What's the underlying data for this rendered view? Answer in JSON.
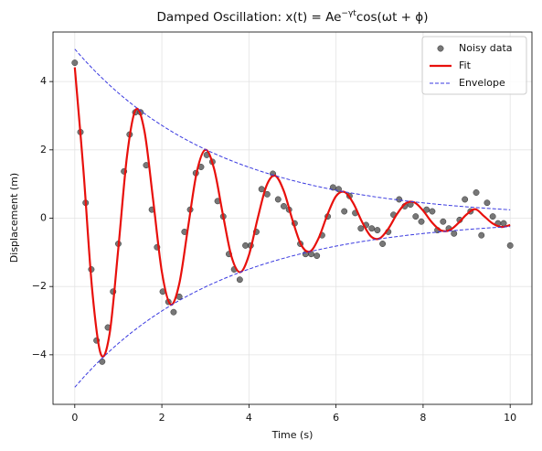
{
  "chart_data": {
    "type": "scatter",
    "title": {
      "text": "Damped Oscillation: x(t) = Ae",
      "superscript": "−γt",
      "rest": "cos(ωt + ϕ)"
    },
    "xlabel": "Time (s)",
    "ylabel": "Displacement (m)",
    "xlim": [
      -0.5,
      10.5
    ],
    "ylim": [
      -5.45,
      5.45
    ],
    "xticks": [
      0,
      2,
      4,
      6,
      8,
      10
    ],
    "yticks": [
      {
        "value": -4,
        "label": "−4"
      },
      {
        "value": -2,
        "label": "−2"
      },
      0,
      2,
      4
    ],
    "grid": true,
    "legend": "upper right",
    "series": [
      {
        "name": "Noisy data",
        "kind": "scatter",
        "color": "#555555",
        "x": [
          0,
          0.13,
          0.25,
          0.38,
          0.5,
          0.63,
          0.76,
          0.88,
          1.0,
          1.13,
          1.26,
          1.39,
          1.51,
          1.64,
          1.77,
          1.89,
          2.02,
          2.15,
          2.27,
          2.4,
          2.52,
          2.65,
          2.78,
          2.9,
          3.03,
          3.16,
          3.28,
          3.41,
          3.54,
          3.66,
          3.79,
          3.92,
          4.04,
          4.17,
          4.29,
          4.42,
          4.55,
          4.67,
          4.8,
          4.92,
          5.05,
          5.18,
          5.3,
          5.43,
          5.56,
          5.68,
          5.81,
          5.93,
          6.06,
          6.19,
          6.31,
          6.44,
          6.57,
          6.69,
          6.82,
          6.95,
          7.07,
          7.2,
          7.32,
          7.45,
          7.58,
          7.71,
          7.83,
          7.96,
          8.08,
          8.21,
          8.33,
          8.46,
          8.59,
          8.71,
          8.84,
          8.96,
          9.09,
          9.22,
          9.34,
          9.47,
          9.6,
          9.72,
          9.85,
          10
        ],
        "values": [
          4.55,
          2.52,
          0.45,
          -1.5,
          -3.58,
          -4.2,
          -3.2,
          -2.15,
          -0.75,
          1.37,
          2.45,
          3.1,
          3.1,
          1.55,
          0.25,
          -0.85,
          -2.15,
          -2.45,
          -2.75,
          -2.3,
          -0.4,
          0.25,
          1.32,
          1.5,
          1.85,
          1.65,
          0.5,
          0.05,
          -1.05,
          -1.5,
          -1.8,
          -0.8,
          -0.8,
          -0.4,
          0.85,
          0.7,
          1.3,
          0.55,
          0.35,
          0.25,
          -0.15,
          -0.75,
          -1.05,
          -1.05,
          -1.1,
          -0.5,
          0.05,
          0.9,
          0.85,
          0.2,
          0.65,
          0.15,
          -0.3,
          -0.2,
          -0.3,
          -0.35,
          -0.75,
          -0.4,
          0.1,
          0.55,
          0.35,
          0.4,
          0.05,
          -0.1,
          0.25,
          0.2,
          -0.35,
          -0.1,
          -0.3,
          -0.45,
          -0.05,
          0.55,
          0.2,
          0.75,
          -0.5,
          0.45,
          0.05,
          -0.15,
          -0.15,
          -0.8
        ]
      },
      {
        "name": "Fit",
        "kind": "line",
        "color": "#e8100c",
        "x": [
          0,
          0.2,
          0.4,
          0.6,
          0.8,
          1.0,
          1.2,
          1.4,
          1.6,
          1.8,
          2.0,
          2.2,
          2.4,
          2.6,
          2.8,
          3.0,
          3.2,
          3.4,
          3.6,
          3.8,
          4.0,
          4.2,
          4.4,
          4.6,
          4.8,
          5.0,
          5.2,
          5.4,
          5.6,
          5.8,
          6.0,
          6.2,
          6.4,
          6.6,
          6.8,
          7.0,
          7.2,
          7.4,
          7.6,
          7.8,
          8.0,
          8.2,
          8.4,
          8.6,
          8.8,
          9.0,
          9.2,
          9.4,
          9.6,
          9.8,
          10.0
        ],
        "values": [
          4.415,
          1.38,
          -2.103,
          -3.986,
          -3.38,
          -0.887,
          1.823,
          3.177,
          2.551,
          0.528,
          -1.57,
          -2.527,
          -1.918,
          -0.281,
          1.336,
          2.002,
          1.444,
          0.12,
          -1.126,
          -1.581,
          -1.079,
          -0.011,
          0.94,
          1.245,
          0.799,
          -0.055,
          -0.781,
          -0.977,
          -0.586,
          0.094,
          0.645,
          0.764,
          0.43,
          -0.114,
          -0.53,
          -0.594,
          -0.311,
          0.119,
          0.433,
          0.462,
          0.221,
          -0.118,
          -0.351,
          -0.357,
          -0.156,
          0.111,
          0.263,
          0.058,
          -0.157,
          -0.258,
          -0.199
        ]
      },
      {
        "name": "Envelope",
        "kind": "dashed",
        "color": "#3a3ae0",
        "x": [
          0,
          0.2,
          0.4,
          0.6,
          0.8,
          1.0,
          1.2,
          1.4,
          1.6,
          1.8,
          2.0,
          2.2,
          2.4,
          2.6,
          2.8,
          3.0,
          3.2,
          3.4,
          3.6,
          3.8,
          4.0,
          4.2,
          4.4,
          4.6,
          4.8,
          5.0,
          5.2,
          5.4,
          5.6,
          5.8,
          6.0,
          6.2,
          6.4,
          6.6,
          6.8,
          7.0,
          7.2,
          7.4,
          7.6,
          7.8,
          8.0,
          8.2,
          8.4,
          8.6,
          8.8,
          9.0,
          9.2,
          9.4,
          9.6,
          9.8,
          10.0
        ],
        "values": [
          4.95,
          4.662,
          4.39,
          4.135,
          3.894,
          3.667,
          3.453,
          3.252,
          3.063,
          2.884,
          2.717,
          2.558,
          2.409,
          2.269,
          2.137,
          2.012,
          1.895,
          1.785,
          1.681,
          1.583,
          1.491,
          1.404,
          1.322,
          1.245,
          1.173,
          1.104,
          1.04,
          0.98,
          0.923,
          0.869,
          0.818,
          0.771,
          0.726,
          0.684,
          0.644,
          0.606,
          0.571,
          0.538,
          0.506,
          0.477,
          0.449,
          0.423,
          0.398,
          0.375,
          0.353,
          0.333,
          0.313,
          0.295,
          0.278,
          0.262,
          0.246
        ]
      },
      {
        "kind": "dashed",
        "color": "#3a3ae0",
        "x": [
          0,
          0.2,
          0.4,
          0.6,
          0.8,
          1.0,
          1.2,
          1.4,
          1.6,
          1.8,
          2.0,
          2.2,
          2.4,
          2.6,
          2.8,
          3.0,
          3.2,
          3.4,
          3.6,
          3.8,
          4.0,
          4.2,
          4.4,
          4.6,
          4.8,
          5.0,
          5.2,
          5.4,
          5.6,
          5.8,
          6.0,
          6.2,
          6.4,
          6.6,
          6.8,
          7.0,
          7.2,
          7.4,
          7.6,
          7.8,
          8.0,
          8.2,
          8.4,
          8.6,
          8.8,
          9.0,
          9.2,
          9.4,
          9.6,
          9.8,
          10.0
        ],
        "values": [
          -4.95,
          -4.662,
          -4.39,
          -4.135,
          -3.894,
          -3.667,
          -3.453,
          -3.252,
          -3.063,
          -2.884,
          -2.717,
          -2.558,
          -2.409,
          -2.269,
          -2.137,
          -2.012,
          -1.895,
          -1.785,
          -1.681,
          -1.583,
          -1.491,
          -1.404,
          -1.322,
          -1.245,
          -1.173,
          -1.104,
          -1.04,
          -0.98,
          -0.923,
          -0.869,
          -0.818,
          -0.771,
          -0.726,
          -0.684,
          -0.644,
          -0.606,
          -0.571,
          -0.538,
          -0.506,
          -0.477,
          -0.449,
          -0.423,
          -0.398,
          -0.375,
          -0.353,
          -0.333,
          -0.313,
          -0.295,
          -0.278,
          -0.262,
          -0.246
        ]
      }
    ]
  }
}
